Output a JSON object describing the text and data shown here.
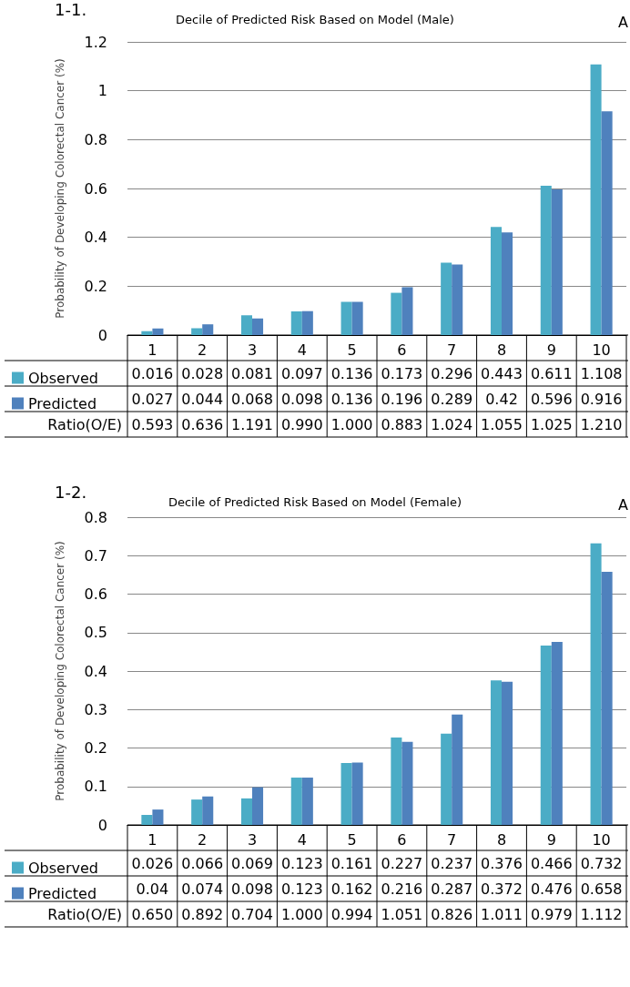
{
  "chart_data": [
    {
      "type": "bar",
      "title": "Decile of Predicted Risk Based on Model (Male)",
      "ylabel": "Probability of Developing Colorectal Cancer (%)",
      "categories": [
        "1",
        "2",
        "3",
        "4",
        "5",
        "6",
        "7",
        "8",
        "9",
        "10"
      ],
      "series": [
        {
          "name": "Observed",
          "color": "#4bacc6",
          "values": [
            0.016,
            0.028,
            0.081,
            0.097,
            0.136,
            0.173,
            0.296,
            0.443,
            0.611,
            1.108
          ]
        },
        {
          "name": "Predicted",
          "color": "#4f81bd",
          "values": [
            0.027,
            0.044,
            0.068,
            0.098,
            0.136,
            0.196,
            0.289,
            0.42,
            0.596,
            0.916
          ]
        }
      ],
      "ylim": [
        0,
        1.2
      ],
      "yticks": [
        0,
        0.2,
        0.4,
        0.6,
        0.8,
        1,
        1.2
      ],
      "grid": "y",
      "legend": "bottom",
      "data_labels": true,
      "annotations": [
        "1-1.",
        "A",
        "Ratio(O/E)",
        "0.593",
        "0.636",
        "1.191",
        "0.990",
        "1.000",
        "0.883",
        "1.024",
        "1.055",
        "1.025",
        "1.210"
      ]
    },
    {
      "type": "bar",
      "title": "Decile of Predicted Risk Based on Model (Female)",
      "ylabel": "Probability of Developing Colorectal Cancer (%)",
      "categories": [
        "1",
        "2",
        "3",
        "4",
        "5",
        "6",
        "7",
        "8",
        "9",
        "10"
      ],
      "series": [
        {
          "name": "Observed",
          "color": "#4bacc6",
          "values": [
            0.026,
            0.066,
            0.069,
            0.123,
            0.161,
            0.227,
            0.237,
            0.376,
            0.466,
            0.732
          ]
        },
        {
          "name": "Predicted",
          "color": "#4f81bd",
          "values": [
            0.04,
            0.074,
            0.098,
            0.123,
            0.162,
            0.216,
            0.287,
            0.372,
            0.476,
            0.658
          ]
        }
      ],
      "ylim": [
        0,
        0.8
      ],
      "yticks": [
        0,
        0.1,
        0.2,
        0.3,
        0.4,
        0.5,
        0.6,
        0.7,
        0.8
      ],
      "grid": "y",
      "legend": "bottom",
      "data_labels": true,
      "annotations": [
        "1-2.",
        "A",
        "Ratio(O/E)",
        "0.650",
        "0.892",
        "0.704",
        "1.000",
        "0.994",
        "1.051",
        "0.826",
        "1.011",
        "0.979",
        "1.112"
      ]
    }
  ]
}
